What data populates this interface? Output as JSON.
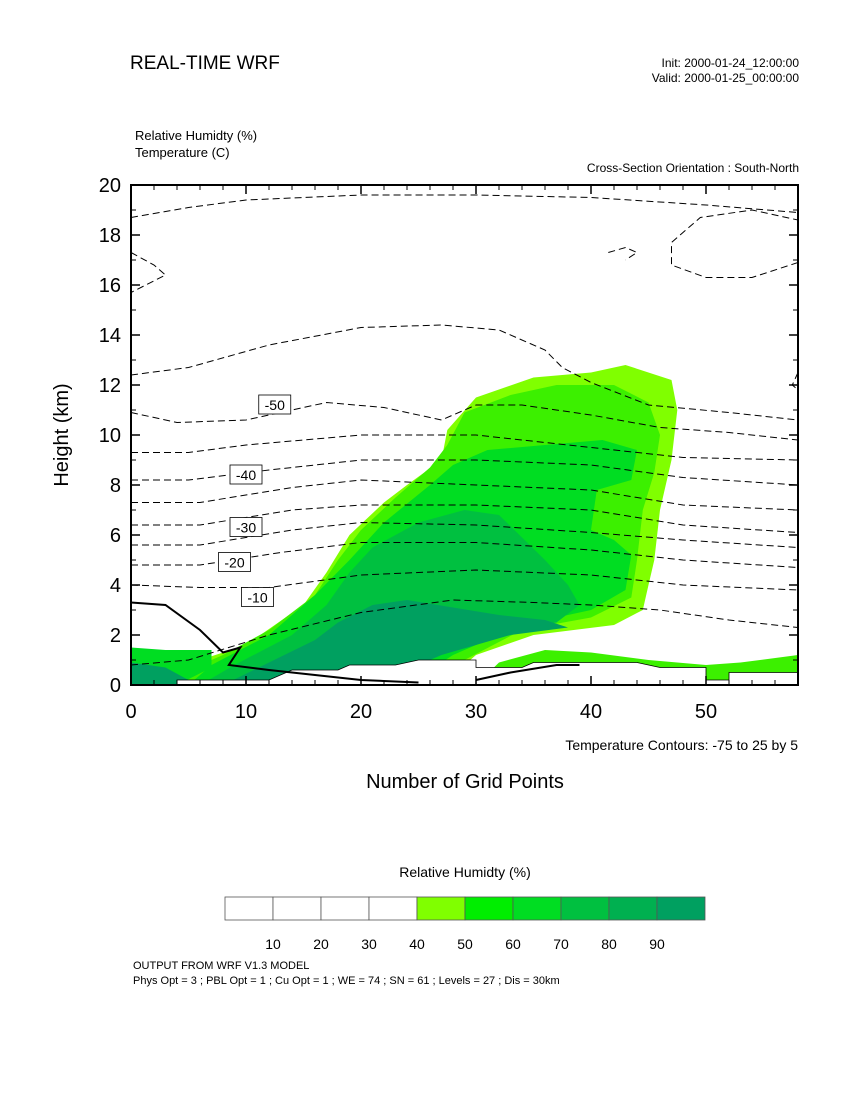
{
  "header": {
    "title": "REAL-TIME WRF",
    "init": "Init: 2000-01-24_12:00:00",
    "valid": "Valid: 2000-01-25_00:00:00"
  },
  "fields": {
    "shaded": "Relative Humidty   (%)",
    "contour": "Temperature   (C)"
  },
  "orientation": "Cross-Section Orientation : South-North",
  "contour_note": "Temperature Contours: -75 to 25 by 5",
  "colorbar": {
    "title": "Relative Humidty  (%)",
    "labels": [
      "10",
      "20",
      "30",
      "40",
      "50",
      "60",
      "70",
      "80",
      "90"
    ],
    "colors": [
      "#ffffff",
      "#ffffff",
      "#ffffff",
      "#ffffff",
      "#80ff00",
      "#00ee00",
      "#00dd22",
      "#00c040",
      "#00b050",
      "#00a060"
    ]
  },
  "footer": {
    "line1": "OUTPUT FROM WRF V1.3 MODEL",
    "line2": "Phys Opt = 3 ; PBL Opt = 1 ; Cu Opt = 1 ; WE = 74 ; SN = 61 ; Levels = 27 ; Dis = 30km"
  },
  "chart_data": {
    "type": "contour",
    "xlabel": "Number of Grid Points",
    "ylabel": "Height (km)",
    "xlim": [
      0,
      58
    ],
    "ylim": [
      0,
      20
    ],
    "xticks": [
      0,
      10,
      20,
      30,
      40,
      50
    ],
    "yticks": [
      0,
      2,
      4,
      6,
      8,
      10,
      12,
      14,
      16,
      18,
      20
    ],
    "shading_levels": [
      40,
      50,
      60,
      70,
      80,
      90
    ],
    "colors": {
      "rh_40": "#80ff00",
      "rh_50": "#3cf000",
      "rh_60": "#00dd22",
      "rh_70": "#00c040",
      "rh_90": "#00a060"
    },
    "rh_regions": [
      {
        "level": 40,
        "points": [
          [
            3.5,
            0
          ],
          [
            4,
            0.6
          ],
          [
            6,
            1
          ],
          [
            10,
            1.6
          ],
          [
            15,
            3.2
          ],
          [
            17,
            4.5
          ],
          [
            19,
            6
          ],
          [
            22,
            7.3
          ],
          [
            24,
            8
          ],
          [
            27,
            9
          ],
          [
            27.5,
            10.2
          ],
          [
            30,
            11.5
          ],
          [
            35,
            12.3
          ],
          [
            40,
            12.5
          ],
          [
            43,
            12.8
          ],
          [
            47,
            12.2
          ],
          [
            47.5,
            11
          ],
          [
            47,
            9
          ],
          [
            46,
            7
          ],
          [
            45.5,
            5
          ],
          [
            45,
            4
          ],
          [
            44.5,
            3
          ],
          [
            42,
            2.4
          ],
          [
            35,
            2
          ],
          [
            30,
            1.2
          ],
          [
            27,
            0
          ]
        ]
      },
      {
        "level": 50,
        "points": [
          [
            4,
            0
          ],
          [
            5,
            0.6
          ],
          [
            8,
            1.2
          ],
          [
            12,
            2.2
          ],
          [
            16,
            3.6
          ],
          [
            18,
            5
          ],
          [
            20,
            6.2
          ],
          [
            23,
            7.5
          ],
          [
            26,
            8.7
          ],
          [
            27.5,
            9.6
          ],
          [
            29,
            10.9
          ],
          [
            33,
            11.6
          ],
          [
            37,
            12
          ],
          [
            42,
            12
          ],
          [
            45,
            11.3
          ],
          [
            46,
            10
          ],
          [
            45.5,
            8.5
          ],
          [
            44.5,
            7
          ],
          [
            44,
            5
          ],
          [
            43.5,
            3.5
          ],
          [
            40,
            2.7
          ],
          [
            34,
            2.2
          ],
          [
            29,
            1
          ],
          [
            26,
            0
          ]
        ]
      },
      {
        "level": 60,
        "points": [
          [
            5,
            0
          ],
          [
            7,
            0.8
          ],
          [
            12,
            2
          ],
          [
            16,
            3.6
          ],
          [
            19,
            5
          ],
          [
            22,
            6.5
          ],
          [
            26,
            8
          ],
          [
            28,
            8.8
          ],
          [
            31,
            9.4
          ],
          [
            36,
            9.6
          ],
          [
            41,
            9.8
          ],
          [
            44,
            9.4
          ],
          [
            43.5,
            8.2
          ],
          [
            40.5,
            7.8
          ],
          [
            40,
            6.2
          ],
          [
            42,
            5.8
          ],
          [
            43.5,
            5.2
          ],
          [
            43,
            3.8
          ],
          [
            40,
            3
          ],
          [
            34,
            2.4
          ],
          [
            28,
            1.2
          ],
          [
            24,
            0
          ]
        ]
      },
      {
        "level": 70,
        "points": [
          [
            6,
            0
          ],
          [
            9,
            0.8
          ],
          [
            14,
            2
          ],
          [
            17,
            3.2
          ],
          [
            19,
            4.5
          ],
          [
            21,
            5.5
          ],
          [
            25,
            6.5
          ],
          [
            29,
            7
          ],
          [
            32,
            6.8
          ],
          [
            36,
            5
          ],
          [
            38,
            4
          ],
          [
            39,
            3.2
          ],
          [
            37,
            2.5
          ],
          [
            30,
            2
          ],
          [
            24,
            0.8
          ],
          [
            20,
            0
          ]
        ]
      },
      {
        "level": 90,
        "points": [
          [
            8,
            0
          ],
          [
            12,
            0.9
          ],
          [
            16,
            1.8
          ],
          [
            18,
            2.5
          ],
          [
            21,
            3.2
          ],
          [
            24,
            3.4
          ],
          [
            28,
            3.1
          ],
          [
            32,
            2.8
          ],
          [
            36,
            2.6
          ],
          [
            38,
            2.3
          ],
          [
            33,
            2
          ],
          [
            27,
            1.2
          ],
          [
            22,
            0.2
          ],
          [
            19,
            0
          ]
        ]
      },
      {
        "level": 60,
        "points": [
          [
            0,
            0
          ],
          [
            0,
            1.5
          ],
          [
            3,
            1.4
          ],
          [
            7,
            1.4
          ],
          [
            7,
            0.7
          ],
          [
            4,
            0
          ]
        ]
      },
      {
        "level": 90,
        "points": [
          [
            0,
            0
          ],
          [
            0,
            0.9
          ],
          [
            3,
            0.7
          ],
          [
            5,
            0.2
          ],
          [
            4,
            0
          ]
        ]
      },
      {
        "level": 50,
        "points": [
          [
            30,
            0
          ],
          [
            32,
            0.9
          ],
          [
            36,
            1.4
          ],
          [
            40,
            1.3
          ],
          [
            45,
            1
          ],
          [
            50,
            0.8
          ],
          [
            53,
            0.9
          ],
          [
            58,
            1.2
          ],
          [
            58,
            0
          ],
          [
            50,
            0
          ]
        ]
      }
    ],
    "terrain": [
      [
        0,
        0
      ],
      [
        4,
        0
      ],
      [
        4,
        0.2
      ],
      [
        12,
        0.2
      ],
      [
        14,
        0.6
      ],
      [
        18,
        0.6
      ],
      [
        19,
        0.8
      ],
      [
        23,
        0.8
      ],
      [
        25,
        1
      ],
      [
        30,
        1
      ],
      [
        30,
        0.7
      ],
      [
        34,
        0.7
      ],
      [
        35,
        0.9
      ],
      [
        44,
        0.9
      ],
      [
        46,
        0.7
      ],
      [
        50,
        0.7
      ],
      [
        50,
        0.2
      ],
      [
        52,
        0.2
      ],
      [
        52,
        0.5
      ],
      [
        58,
        0.5
      ],
      [
        58,
        0
      ]
    ],
    "temperature_contours": [
      {
        "value": 0,
        "style": "solid",
        "points": [
          [
            0,
            3.3
          ],
          [
            3,
            3.2
          ],
          [
            6,
            2.2
          ],
          [
            8,
            1.3
          ],
          [
            9.5,
            1.5
          ],
          [
            8.5,
            0.8
          ],
          [
            12,
            0.6
          ],
          [
            20,
            0.2
          ],
          [
            25,
            0.1
          ]
        ]
      },
      {
        "value": 0,
        "style": "solid",
        "points": [
          [
            30,
            0.2
          ],
          [
            33,
            0.5
          ],
          [
            37,
            0.8
          ],
          [
            39,
            0.8
          ]
        ]
      },
      {
        "value": -10,
        "label_at": [
          11,
          3.5
        ],
        "points": [
          [
            0,
            0.8
          ],
          [
            5,
            1
          ],
          [
            12,
            2
          ],
          [
            20,
            2.9
          ],
          [
            28,
            3.4
          ],
          [
            35,
            3.3
          ],
          [
            40,
            3.2
          ],
          [
            46,
            3
          ],
          [
            52,
            2.6
          ],
          [
            58,
            2.3
          ]
        ]
      },
      {
        "value": -15,
        "points": [
          [
            0,
            4
          ],
          [
            6,
            3.9
          ],
          [
            12,
            3.9
          ],
          [
            20,
            4.4
          ],
          [
            30,
            4.6
          ],
          [
            40,
            4.4
          ],
          [
            48,
            4
          ],
          [
            58,
            3.8
          ]
        ]
      },
      {
        "value": -20,
        "label_at": [
          9,
          4.9
        ],
        "points": [
          [
            0,
            4.8
          ],
          [
            6,
            4.8
          ],
          [
            13,
            5.3
          ],
          [
            20,
            5.7
          ],
          [
            30,
            5.7
          ],
          [
            40,
            5.4
          ],
          [
            48,
            5
          ],
          [
            58,
            4.7
          ]
        ]
      },
      {
        "value": -25,
        "points": [
          [
            0,
            5.6
          ],
          [
            6,
            5.6
          ],
          [
            14,
            6.2
          ],
          [
            20,
            6.5
          ],
          [
            30,
            6.4
          ],
          [
            40,
            6.1
          ],
          [
            48,
            5.8
          ],
          [
            58,
            5.5
          ]
        ]
      },
      {
        "value": -30,
        "label_at": [
          10,
          6.3
        ],
        "points": [
          [
            0,
            6.4
          ],
          [
            6,
            6.4
          ],
          [
            14,
            7
          ],
          [
            20,
            7.2
          ],
          [
            30,
            7.2
          ],
          [
            40,
            7
          ],
          [
            48,
            6.4
          ],
          [
            58,
            6.1
          ]
        ]
      },
      {
        "value": -35,
        "points": [
          [
            0,
            7.3
          ],
          [
            6,
            7.3
          ],
          [
            14,
            7.9
          ],
          [
            20,
            8.2
          ],
          [
            30,
            8
          ],
          [
            40,
            7.8
          ],
          [
            48,
            7.2
          ],
          [
            58,
            7.0
          ]
        ]
      },
      {
        "value": -40,
        "label_at": [
          10,
          8.4
        ],
        "points": [
          [
            0,
            8.2
          ],
          [
            5,
            8.2
          ],
          [
            12,
            8.6
          ],
          [
            20,
            9
          ],
          [
            30,
            9
          ],
          [
            40,
            8.8
          ],
          [
            48,
            8.3
          ],
          [
            58,
            8.0
          ]
        ]
      },
      {
        "value": -45,
        "points": [
          [
            0,
            9.3
          ],
          [
            5,
            9.3
          ],
          [
            10,
            9.6
          ],
          [
            20,
            10
          ],
          [
            30,
            10
          ],
          [
            40,
            9.5
          ],
          [
            48,
            9.1
          ],
          [
            58,
            9.0
          ]
        ]
      },
      {
        "value": -50,
        "label_at": [
          12.5,
          11.2
        ],
        "points": [
          [
            0,
            10.9
          ],
          [
            4,
            10.5
          ],
          [
            10,
            10.6
          ],
          [
            17,
            11.3
          ],
          [
            22,
            11.1
          ],
          [
            27,
            10.6
          ],
          [
            30,
            11.2
          ],
          [
            34,
            11.2
          ],
          [
            40,
            10.8
          ],
          [
            46,
            10.3
          ],
          [
            52,
            10.1
          ],
          [
            58,
            9.8
          ]
        ]
      },
      {
        "value": -55,
        "points": [
          [
            0,
            12.4
          ],
          [
            5,
            12.7
          ],
          [
            12,
            13.6
          ],
          [
            20,
            14.3
          ],
          [
            27,
            14.4
          ],
          [
            32,
            14.2
          ],
          [
            36,
            13.4
          ],
          [
            37.5,
            12.7
          ],
          [
            40,
            12.1
          ],
          [
            45,
            11.2
          ],
          [
            52,
            10.9
          ],
          [
            58,
            10.6
          ]
        ]
      },
      {
        "value": -60,
        "points": [
          [
            0,
            17.3
          ],
          [
            2,
            16.8
          ],
          [
            3,
            16.4
          ],
          [
            0,
            15.7
          ]
        ]
      },
      {
        "value": -60,
        "points": [
          [
            0,
            18.7
          ],
          [
            5,
            19.1
          ],
          [
            10,
            19.4
          ],
          [
            20,
            19.6
          ],
          [
            30,
            19.6
          ],
          [
            40,
            19.5
          ],
          [
            50,
            19.2
          ],
          [
            58,
            18.9
          ]
        ]
      },
      {
        "value": -60,
        "points": [
          [
            58,
            16.9
          ],
          [
            54,
            16.3
          ],
          [
            50,
            16.3
          ],
          [
            47,
            16.8
          ],
          [
            47,
            17.7
          ],
          [
            49.5,
            18.7
          ],
          [
            54,
            19
          ],
          [
            58,
            18.6
          ]
        ]
      },
      {
        "value": -65,
        "points": [
          [
            41.5,
            17.3
          ],
          [
            43,
            17.5
          ],
          [
            44,
            17.3
          ],
          [
            43,
            17
          ]
        ]
      },
      {
        "value": -55,
        "points": [
          [
            58,
            12.5
          ],
          [
            57.5,
            12
          ],
          [
            58,
            11.8
          ]
        ]
      }
    ]
  }
}
